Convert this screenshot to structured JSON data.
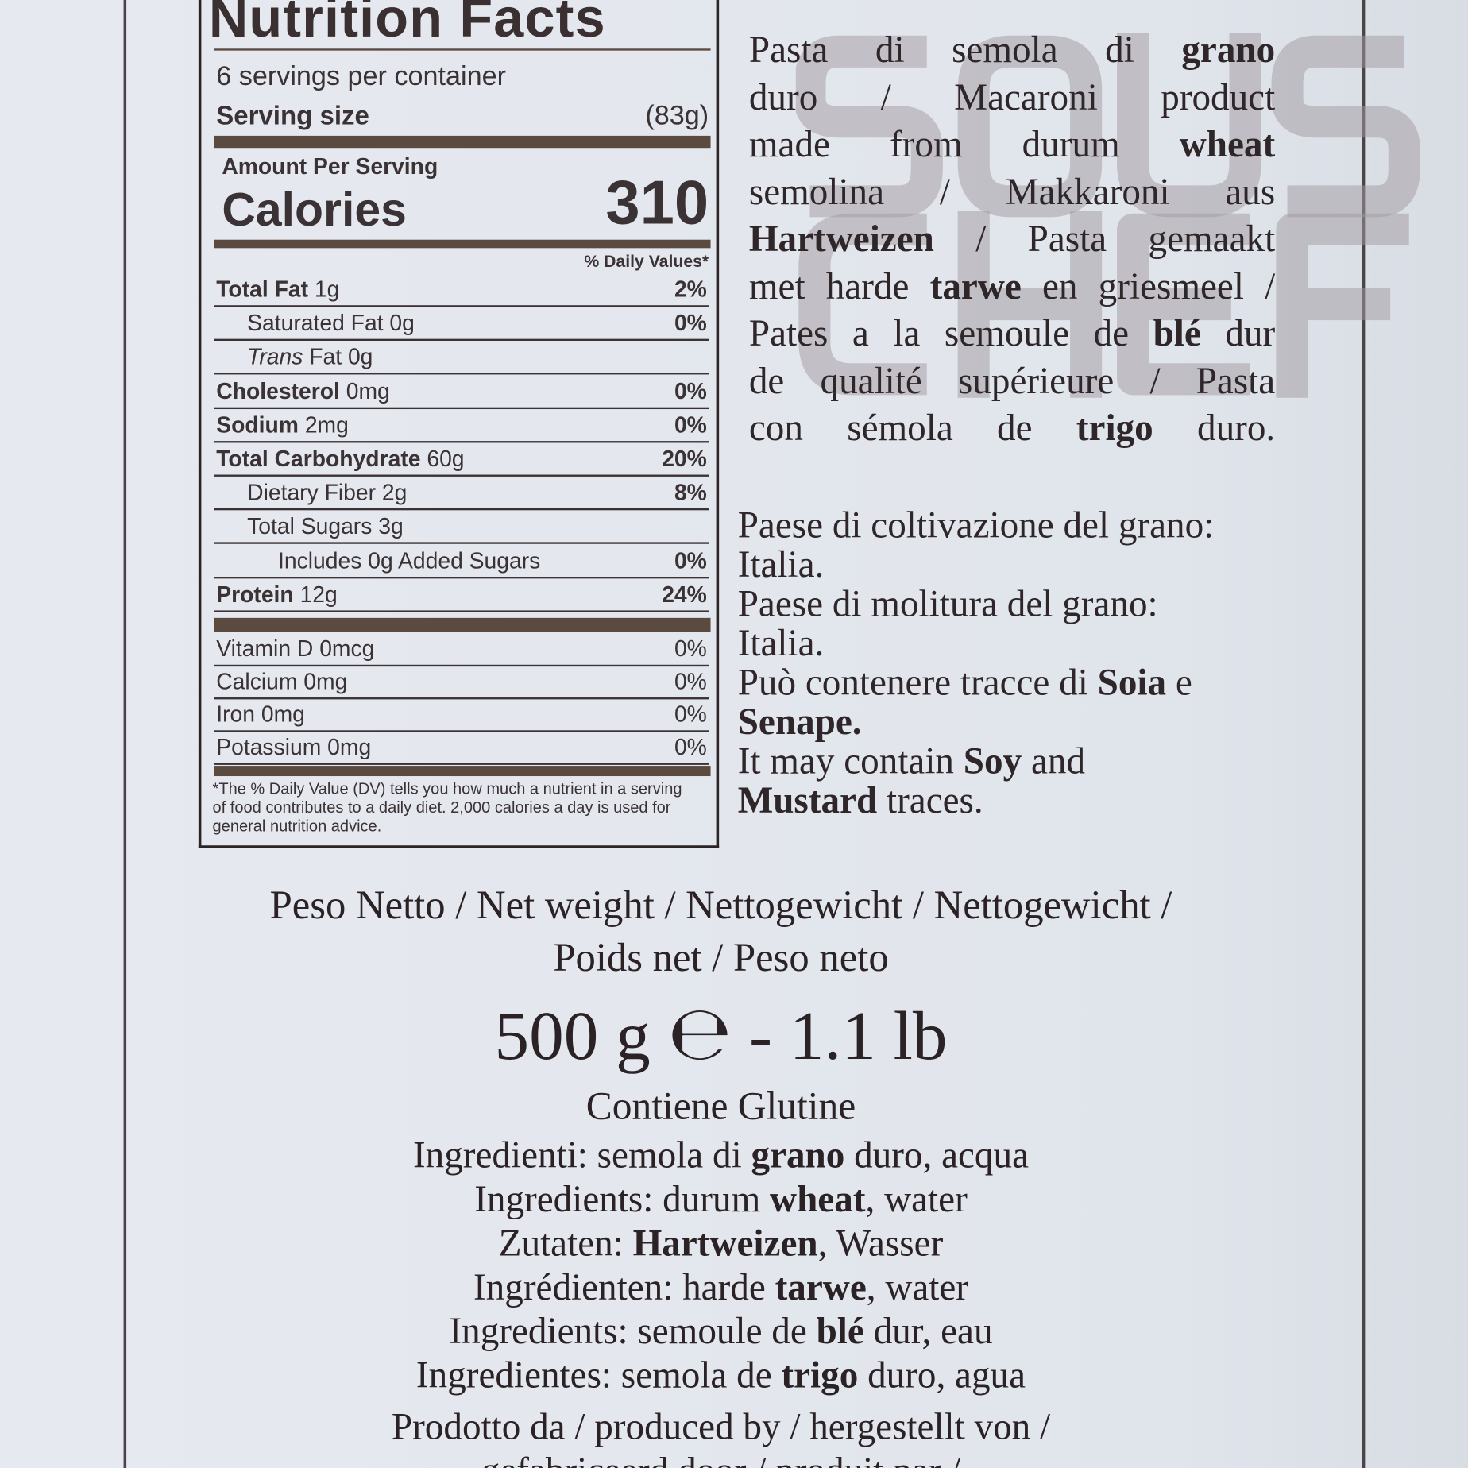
{
  "watermark": "SOUS CHEF",
  "nutrition": {
    "title": "Nutrition Facts",
    "servings": "6 servings per container",
    "serving_size_label": "Serving size",
    "serving_size_value": "(83g)",
    "amount_per_serving": "Amount Per Serving",
    "calories_label": "Calories",
    "calories_value": "310",
    "dv_header": "% Daily Values*",
    "rows": [
      {
        "label": "Total Fat",
        "amount": "1g",
        "dv": "2%",
        "bold": true,
        "indent": 0
      },
      {
        "label": "Saturated Fat",
        "amount": "0g",
        "dv": "0%",
        "bold": false,
        "indent": 1
      },
      {
        "label": "Trans",
        "amount": "Fat 0g",
        "dv": "",
        "bold": false,
        "indent": 1,
        "italic_label": true
      },
      {
        "label": "Cholesterol",
        "amount": "0mg",
        "dv": "0%",
        "bold": true,
        "indent": 0
      },
      {
        "label": "Sodium",
        "amount": "2mg",
        "dv": "0%",
        "bold": true,
        "indent": 0
      },
      {
        "label": "Total Carbohydrate",
        "amount": "60g",
        "dv": "20%",
        "bold": true,
        "indent": 0
      },
      {
        "label": "Dietary Fiber",
        "amount": "2g",
        "dv": "8%",
        "bold": false,
        "indent": 1
      },
      {
        "label": "Total Sugars",
        "amount": "3g",
        "dv": "",
        "bold": false,
        "indent": 1
      },
      {
        "label": "Includes 0g Added Sugars",
        "amount": "",
        "dv": "0%",
        "bold": false,
        "indent": 2
      },
      {
        "label": "Protein",
        "amount": "12g",
        "dv": "24%",
        "bold": true,
        "indent": 0
      }
    ],
    "micros": [
      {
        "label": "Vitamin D 0mcg",
        "dv": "0%"
      },
      {
        "label": "Calcium 0mg",
        "dv": "0%"
      },
      {
        "label": "Iron 0mg",
        "dv": "0%"
      },
      {
        "label": "Potassium 0mg",
        "dv": "0%"
      }
    ],
    "footnote": "*The % Daily Value (DV) tells you how much a nutrient in a serving of food contributes to a daily diet. 2,000 calories a day is used for general nutrition advice."
  },
  "description_lines": [
    [
      {
        "t": "Pasta di semola di "
      },
      {
        "t": "grano",
        "b": true
      }
    ],
    [
      {
        "t": "duro / Macaroni product"
      }
    ],
    [
      {
        "t": "made from durum "
      },
      {
        "t": "wheat",
        "b": true
      }
    ],
    [
      {
        "t": "semolina / Makkaroni aus"
      }
    ],
    [
      {
        "t": "Hartweizen",
        "b": true
      },
      {
        "t": " / Pasta gemaakt"
      }
    ],
    [
      {
        "t": "met harde "
      },
      {
        "t": "tarwe",
        "b": true
      },
      {
        "t": " en griesmeel /"
      }
    ],
    [
      {
        "t": "Pates a la semoule de "
      },
      {
        "t": "blé",
        "b": true
      },
      {
        "t": " dur"
      }
    ],
    [
      {
        "t": "de qualité supérieure / Pasta"
      }
    ],
    [
      {
        "t": "con sémola de "
      },
      {
        "t": "trigo",
        "b": true
      },
      {
        "t": " duro."
      }
    ]
  ],
  "origin_lines": [
    [
      {
        "t": "Paese di coltivazione del grano:"
      }
    ],
    [
      {
        "t": "Italia."
      }
    ],
    [
      {
        "t": "Paese di molitura del grano:"
      }
    ],
    [
      {
        "t": "Italia."
      }
    ],
    [
      {
        "t": "Può contenere tracce di "
      },
      {
        "t": "Soia",
        "b": true
      },
      {
        "t": " e"
      }
    ],
    [
      {
        "t": "Senape.",
        "b": true
      }
    ],
    [
      {
        "t": "It may contain "
      },
      {
        "t": "Soy",
        "b": true
      },
      {
        "t": " and"
      }
    ],
    [
      {
        "t": "Mustard",
        "b": true
      },
      {
        "t": " traces."
      }
    ]
  ],
  "net_weight": {
    "line1": "Peso Netto / Net weight / Nettogewicht / Nettogewicht /",
    "line2": "Poids net / Peso neto",
    "amount": "500 g",
    "estimated_mark": "℮",
    "imperial": "- 1.1 lb"
  },
  "gluten": "Contiene Glutine",
  "ingredient_lines": [
    [
      {
        "t": "Ingredienti: semola di "
      },
      {
        "t": "grano",
        "b": true
      },
      {
        "t": " duro, acqua"
      }
    ],
    [
      {
        "t": "Ingredients: durum "
      },
      {
        "t": "wheat",
        "b": true
      },
      {
        "t": ", water"
      }
    ],
    [
      {
        "t": "Zutaten: "
      },
      {
        "t": "Hartweizen",
        "b": true
      },
      {
        "t": ", Wasser"
      }
    ],
    [
      {
        "t": "Ingrédienten: harde "
      },
      {
        "t": "tarwe",
        "b": true
      },
      {
        "t": ", water"
      }
    ],
    [
      {
        "t": "Ingredients: semoule de "
      },
      {
        "t": "blé",
        "b": true
      },
      {
        "t": " dur, eau"
      }
    ],
    [
      {
        "t": "Ingredientes: semola de "
      },
      {
        "t": "trigo",
        "b": true
      },
      {
        "t": " duro, agua"
      }
    ]
  ],
  "producer_lines": [
    "Prodotto da / produced by / hergestellt von /",
    "gefabriceerd door / produit par /"
  ]
}
